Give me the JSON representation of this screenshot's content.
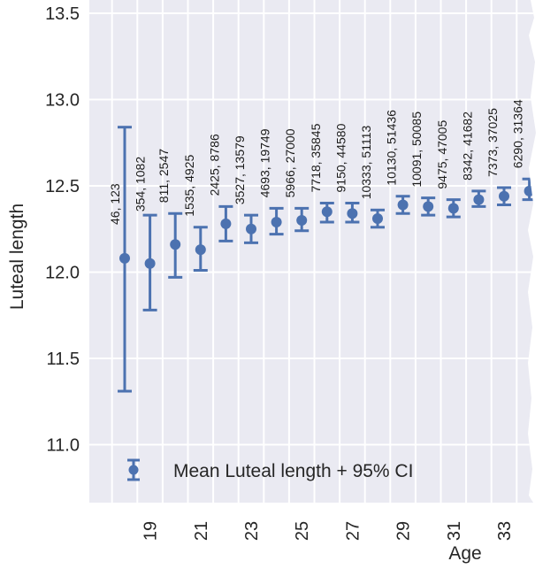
{
  "chart_data": {
    "type": "scatter",
    "subtype": "errorbar",
    "title": "",
    "xlabel": "Age",
    "ylabel": "Luteal length",
    "ylim": [
      10.68,
      13.52
    ],
    "xlim": [
      17.1,
      34.3
    ],
    "grid": true,
    "yticks": [
      11.0,
      11.5,
      12.0,
      12.5,
      13.0,
      13.5
    ],
    "ytick_labels": [
      "11.0",
      "11.5",
      "12.0",
      "12.5",
      "13.0",
      "13.5"
    ],
    "xticks": [
      19,
      21,
      23,
      25,
      27,
      29,
      31,
      33
    ],
    "xtick_labels": [
      "19",
      "21",
      "23",
      "25",
      "27",
      "29",
      "31",
      "33"
    ],
    "legend": {
      "label": "Mean Luteal length + 95% CI",
      "placement": "lower-left"
    },
    "series": [
      {
        "name": "Mean Luteal length + 95% CI",
        "color": "#4c72b0",
        "x": [
          18,
          19,
          20,
          21,
          22,
          23,
          24,
          25,
          26,
          27,
          28,
          29,
          30,
          31,
          32,
          33,
          34
        ],
        "mean": [
          12.08,
          12.05,
          12.16,
          12.13,
          12.28,
          12.25,
          12.29,
          12.3,
          12.35,
          12.34,
          12.31,
          12.39,
          12.38,
          12.37,
          12.42,
          12.44,
          12.47
        ],
        "ci_low": [
          11.31,
          11.78,
          11.97,
          12.01,
          12.18,
          12.17,
          12.22,
          12.24,
          12.29,
          12.29,
          12.26,
          12.34,
          12.33,
          12.32,
          12.38,
          12.39,
          12.42
        ],
        "ci_high": [
          12.84,
          12.33,
          12.34,
          12.26,
          12.38,
          12.33,
          12.37,
          12.37,
          12.4,
          12.4,
          12.36,
          12.44,
          12.43,
          12.42,
          12.47,
          12.49,
          12.54
        ],
        "annotations": [
          "46, 123",
          "354, 1082",
          "811, 2547",
          "1535, 4925",
          "2425, 8786",
          "3527, 13579",
          "4693, 19749",
          "5966, 27000",
          "7718, 35845",
          "9150, 44580",
          "10333, 51113",
          "10130, 51436",
          "10091, 50085",
          "9475, 47005",
          "8342, 41682",
          "7373, 37025",
          "6290, 31364"
        ]
      }
    ]
  },
  "colors": {
    "plot_background": "#eaeaf2",
    "grid": "#ffffff",
    "series": "#4c72b0"
  }
}
